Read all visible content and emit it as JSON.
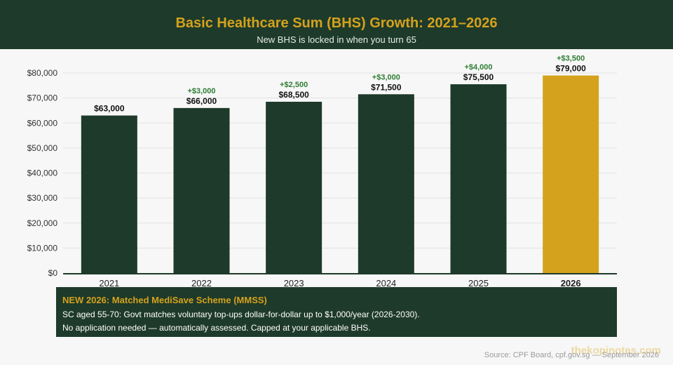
{
  "header": {
    "title": "Basic Healthcare Sum (BHS) Growth: 2021–2026",
    "subtitle": "New BHS is locked in when you turn 65"
  },
  "chart_data": {
    "type": "bar",
    "title": "Basic Healthcare Sum (BHS) Growth: 2021–2026",
    "subtitle": "New BHS is locked in when you turn 65",
    "categories": [
      "2021",
      "2022",
      "2023",
      "2024",
      "2025",
      "2026"
    ],
    "values": [
      63000,
      66000,
      68500,
      71500,
      75500,
      79000
    ],
    "value_labels": [
      "$63,000",
      "$66,000",
      "$68,500",
      "$71,500",
      "$75,500",
      "$79,000"
    ],
    "change_labels": [
      "",
      "+$3,000",
      "+$2,500",
      "+$3,000",
      "+$4,000",
      "+$3,500"
    ],
    "ylim": [
      0,
      80000
    ],
    "yticks": [
      0,
      10000,
      20000,
      30000,
      40000,
      50000,
      60000,
      70000,
      80000
    ],
    "ytick_labels": [
      "$0",
      "$10,000",
      "$20,000",
      "$30,000",
      "$40,000",
      "$50,000",
      "$60,000",
      "$70,000",
      "$80,000"
    ],
    "grid": true,
    "highlight_index": 5,
    "colors": {
      "bar": "#1e3a2a",
      "highlight": "#d4a21d",
      "change": "#2e7d32"
    }
  },
  "info_box": {
    "title": "NEW 2026: Matched MediSave Scheme (MMSS)",
    "line1": "SC aged 55-70: Govt matches voluntary top-ups dollar-for-dollar up to $1,000/year (2026-2030).",
    "line2": "No application needed — automatically assessed. Capped at your applicable BHS."
  },
  "footer": {
    "source": "Source: CPF Board, cpf.gov.sg — September 2026",
    "watermark": "thekopinotes.com"
  }
}
